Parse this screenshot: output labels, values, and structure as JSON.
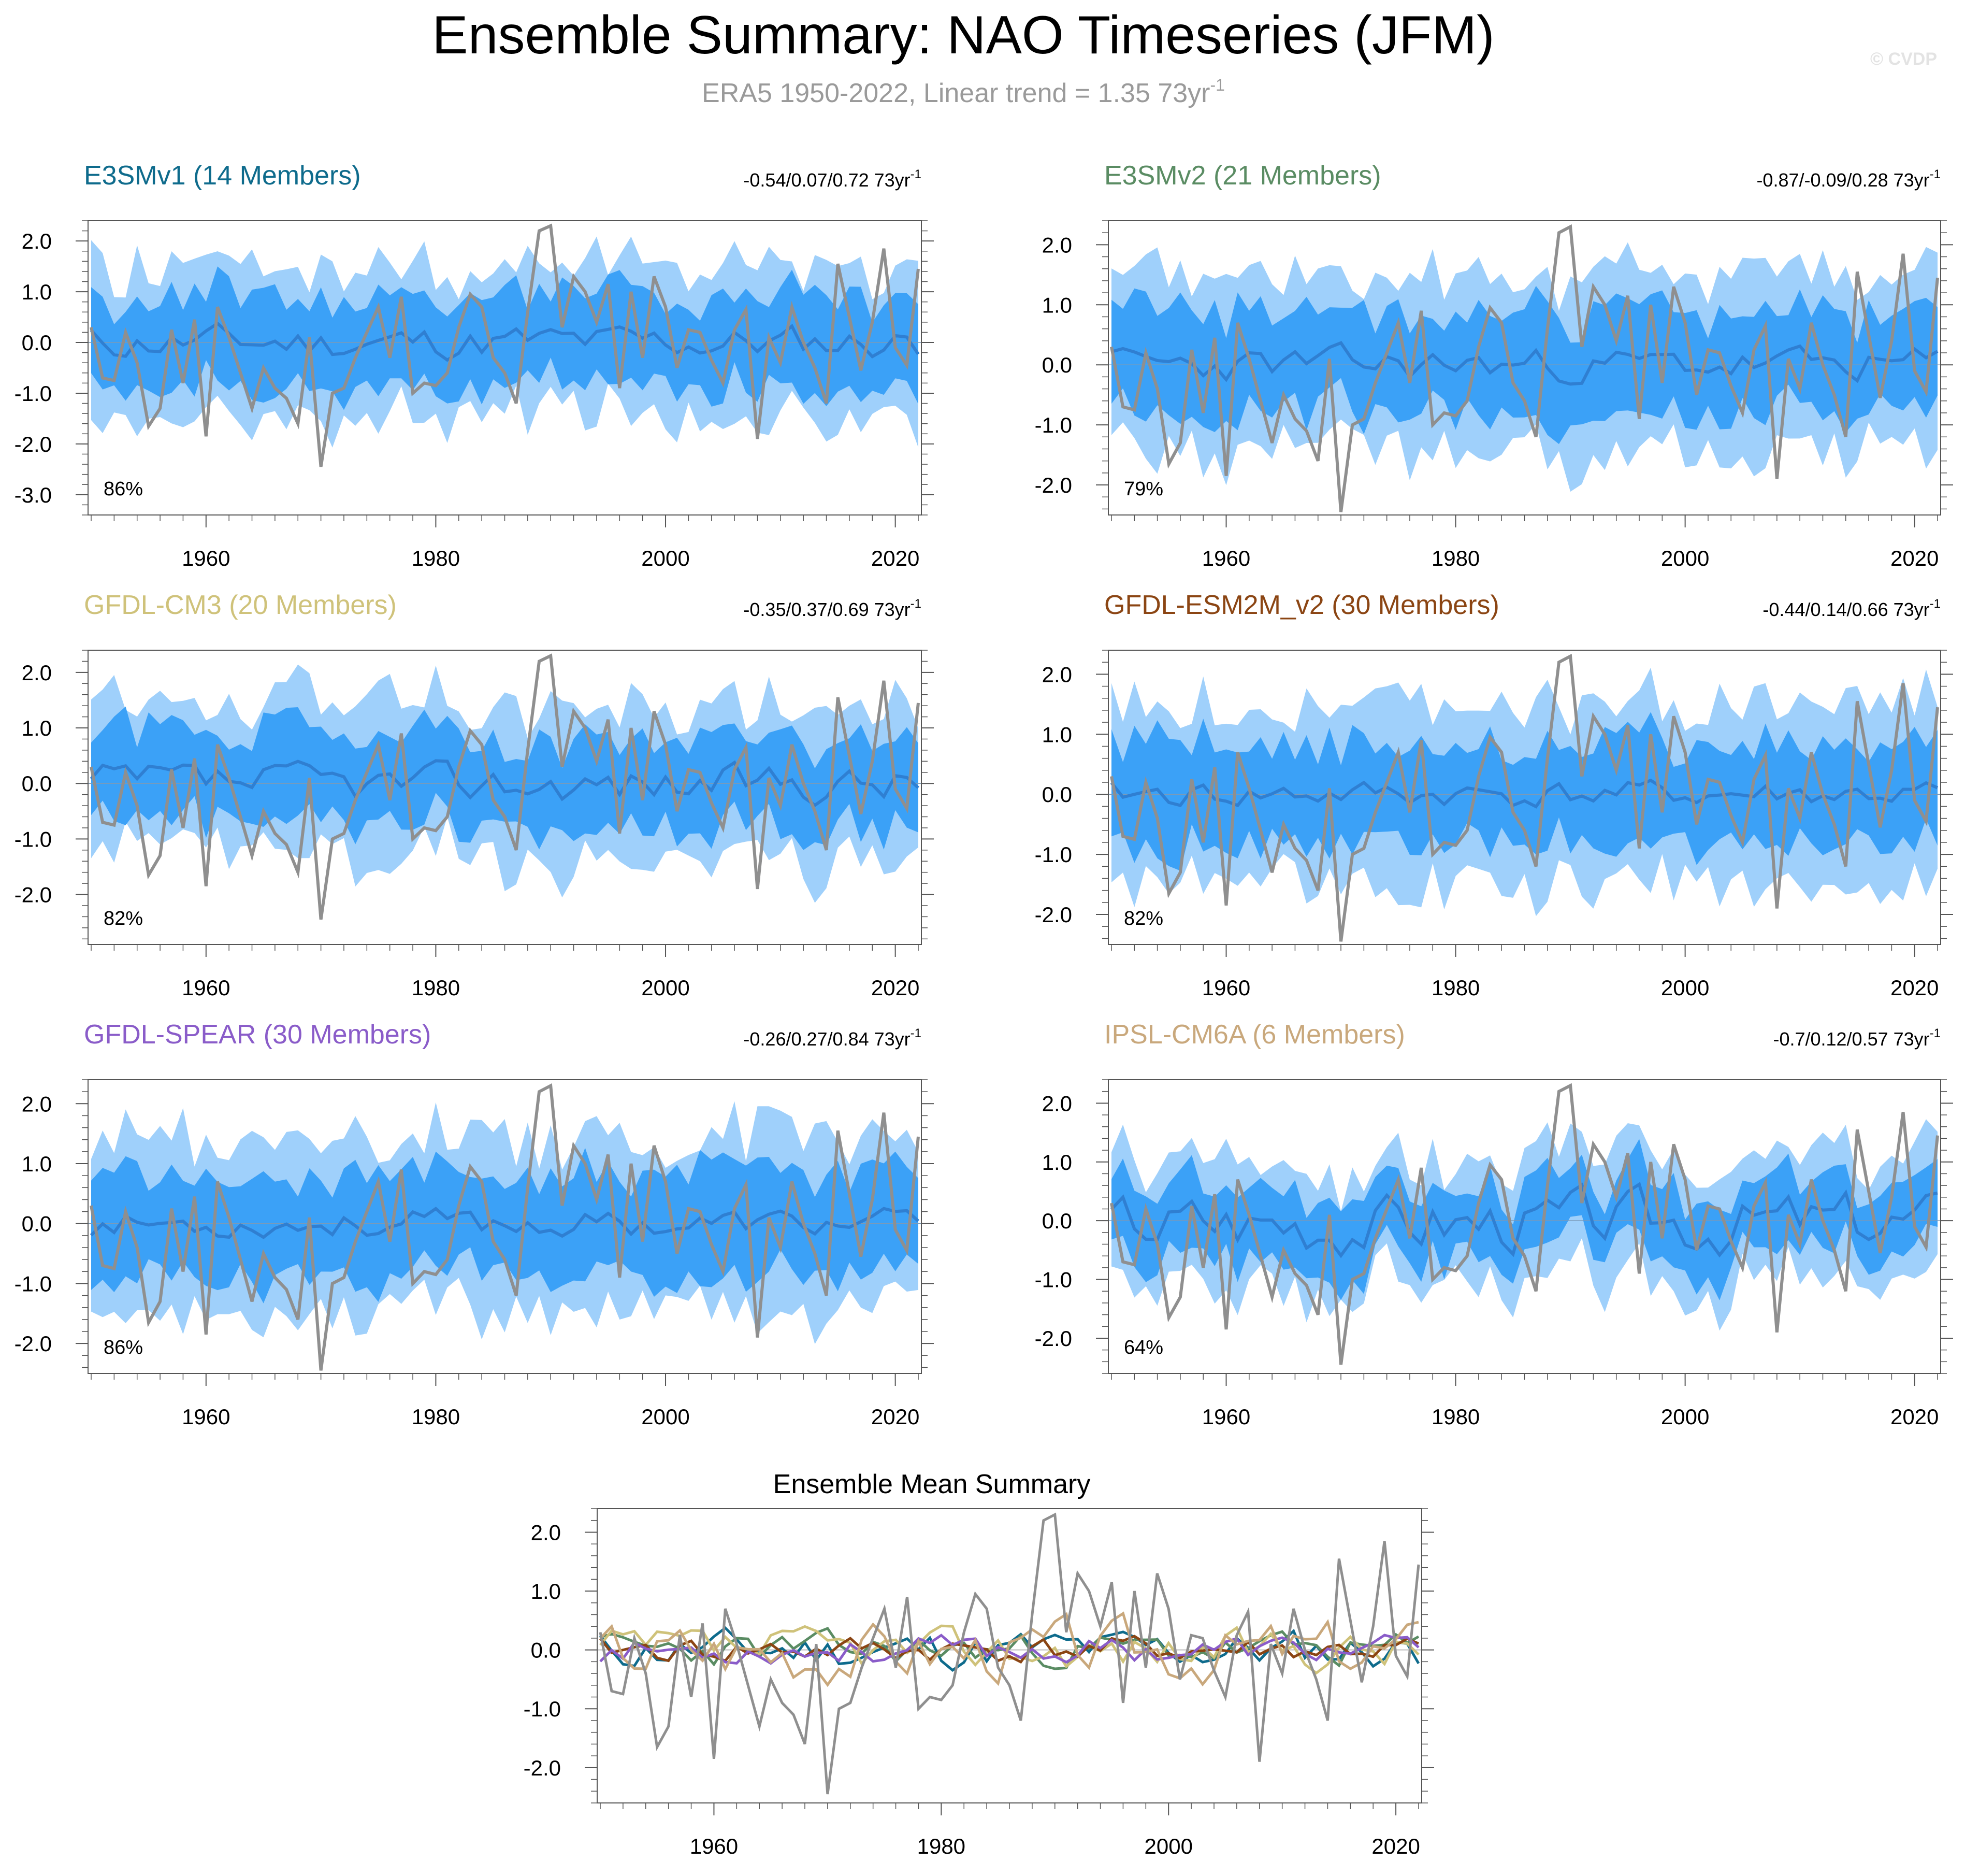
{
  "header": {
    "title": "Ensemble Summary: NAO Timeseries (JFM)",
    "subtitle_prefix": "ERA5 1950-2022, Linear trend = 1.35 73yr",
    "subtitle_sup": "-1",
    "watermark": "© CVDP"
  },
  "colors": {
    "obs": "#8f8f8f",
    "band_outer": "#9fd0fb",
    "band_inner": "#3ba1f7",
    "mean": "#2f7fd2",
    "e3smv1": "#0e6b8c",
    "e3smv2": "#5a8c63",
    "gfdl_cm3": "#cfc27a",
    "gfdl_esm2m": "#8b4513",
    "gfdl_spear": "#8a5cc9",
    "ipsl": "#c9a87c"
  },
  "chart_data": [
    {
      "type": "area",
      "title": "E3SMv1 (14 Members)",
      "title_color_key": "e3smv1",
      "trend": "-0.54/0.07/0.72 73yr",
      "trend_sup": "-1",
      "percent": "86%",
      "ylim": [
        -3.4,
        2.4
      ],
      "yticks": [
        "2.0",
        "1.0",
        "0.0",
        "-1.0",
        "-2.0",
        "-3.0"
      ],
      "ytick_values": [
        2,
        1,
        0,
        -1,
        -2,
        -3
      ],
      "xticks": [
        "1960",
        "1980",
        "2000",
        "2020"
      ],
      "xtick_values": [
        1960,
        1980,
        2000,
        2020
      ],
      "x_range": [
        1950,
        2022
      ],
      "spread": 1.0,
      "seed": 11,
      "mean_amp": 0.3
    },
    {
      "type": "area",
      "title": "E3SMv2 (21 Members)",
      "title_color_key": "e3smv2",
      "trend": "-0.87/-0.09/0.28 73yr",
      "trend_sup": "-1",
      "percent": "79%",
      "ylim": [
        -2.5,
        2.4
      ],
      "yticks": [
        "2.0",
        "1.0",
        "0.0",
        "-1.0",
        "-2.0"
      ],
      "ytick_values": [
        2,
        1,
        0,
        -1,
        -2
      ],
      "xticks": [
        "1960",
        "1980",
        "2000",
        "2020"
      ],
      "xtick_values": [
        1960,
        1980,
        2000,
        2020
      ],
      "x_range": [
        1950,
        2022
      ],
      "spread": 1.0,
      "seed": 23,
      "mean_amp": 0.25
    },
    {
      "type": "area",
      "title": "GFDL-CM3 (20 Members)",
      "title_color_key": "gfdl_cm3",
      "trend": "-0.35/0.37/0.69 73yr",
      "trend_sup": "-1",
      "percent": "82%",
      "ylim": [
        -2.9,
        2.4
      ],
      "yticks": [
        "2.0",
        "1.0",
        "0.0",
        "-1.0",
        "-2.0"
      ],
      "ytick_values": [
        2,
        1,
        0,
        -1,
        -2
      ],
      "xticks": [
        "1960",
        "1980",
        "2000",
        "2020"
      ],
      "xtick_values": [
        1960,
        1980,
        2000,
        2020
      ],
      "x_range": [
        1950,
        2022
      ],
      "spread": 0.95,
      "seed": 37,
      "mean_amp": 0.3
    },
    {
      "type": "area",
      "title": "GFDL-ESM2M_v2 (30 Members)",
      "title_color_key": "gfdl_esm2m",
      "trend": "-0.44/0.14/0.66 73yr",
      "trend_sup": "-1",
      "percent": "82%",
      "ylim": [
        -2.5,
        2.4
      ],
      "yticks": [
        "2.0",
        "1.0",
        "0.0",
        "-1.0",
        "-2.0"
      ],
      "ytick_values": [
        2,
        1,
        0,
        -1,
        -2
      ],
      "xticks": [
        "1960",
        "1980",
        "2000",
        "2020"
      ],
      "xtick_values": [
        1960,
        1980,
        2000,
        2020
      ],
      "x_range": [
        1950,
        2022
      ],
      "spread": 1.0,
      "seed": 41,
      "mean_amp": 0.2
    },
    {
      "type": "area",
      "title": "GFDL-SPEAR (30 Members)",
      "title_color_key": "gfdl_spear",
      "trend": "-0.26/0.27/0.84 73yr",
      "trend_sup": "-1",
      "percent": "86%",
      "ylim": [
        -2.5,
        2.4
      ],
      "yticks": [
        "2.0",
        "1.0",
        "0.0",
        "-1.0",
        "-2.0"
      ],
      "ytick_values": [
        2,
        1,
        0,
        -1,
        -2
      ],
      "xticks": [
        "1960",
        "1980",
        "2000",
        "2020"
      ],
      "xtick_values": [
        1960,
        1980,
        2000,
        2020
      ],
      "x_range": [
        1950,
        2022
      ],
      "spread": 1.0,
      "seed": 53,
      "mean_amp": 0.2
    },
    {
      "type": "area",
      "title": "IPSL-CM6A (6 Members)",
      "title_color_key": "ipsl",
      "trend": "-0.7/0.12/0.57 73yr",
      "trend_sup": "-1",
      "percent": "64%",
      "ylim": [
        -2.6,
        2.4
      ],
      "yticks": [
        "2.0",
        "1.0",
        "0.0",
        "-1.0",
        "-2.0"
      ],
      "ytick_values": [
        2,
        1,
        0,
        -1,
        -2
      ],
      "xticks": [
        "1960",
        "1980",
        "2000",
        "2020"
      ],
      "xtick_values": [
        1960,
        1980,
        2000,
        2020
      ],
      "x_range": [
        1950,
        2022
      ],
      "spread": 0.7,
      "seed": 67,
      "mean_amp": 0.45
    },
    {
      "type": "line",
      "title": "Ensemble Mean Summary",
      "ylim": [
        -2.6,
        2.4
      ],
      "yticks": [
        "2.0",
        "1.0",
        "0.0",
        "-1.0",
        "-2.0"
      ],
      "ytick_values": [
        2,
        1,
        0,
        -1,
        -2
      ],
      "xticks": [
        "1960",
        "1980",
        "2000",
        "2020"
      ],
      "xtick_values": [
        1960,
        1980,
        2000,
        2020
      ],
      "x_range": [
        1950,
        2022
      ],
      "series_color_keys": [
        "e3smv1",
        "e3smv2",
        "gfdl_cm3",
        "gfdl_esm2m",
        "gfdl_spear",
        "ipsl"
      ],
      "series_seeds": [
        11,
        23,
        37,
        41,
        53,
        67
      ],
      "series_amps": [
        0.3,
        0.25,
        0.3,
        0.2,
        0.2,
        0.45
      ]
    }
  ],
  "obs_series": {
    "name": "ERA5",
    "x_start": 1950,
    "values": [
      0.3,
      -0.7,
      -0.75,
      0.2,
      -0.4,
      -1.65,
      -1.3,
      0.25,
      -0.8,
      0.45,
      -1.85,
      0.7,
      0.1,
      -0.6,
      -1.3,
      -0.5,
      -0.9,
      -1.1,
      -1.6,
      0.1,
      -2.45,
      -1.0,
      -0.9,
      -0.3,
      0.2,
      0.7,
      -0.3,
      0.9,
      -1.0,
      -0.8,
      -0.85,
      -0.6,
      0.3,
      0.95,
      0.7,
      -0.3,
      -0.6,
      -1.2,
      0.6,
      2.2,
      2.3,
      0.3,
      1.3,
      1.0,
      0.4,
      1.15,
      -0.9,
      1.0,
      -0.3,
      1.3,
      0.7,
      -0.5,
      0.25,
      0.2,
      -0.35,
      -0.8,
      0.25,
      0.65,
      -1.9,
      0.1,
      -0.4,
      0.7,
      0.0,
      -0.5,
      -1.2,
      1.55,
      0.5,
      -0.55,
      0.4,
      1.85,
      -0.1,
      -0.45,
      1.45
    ]
  }
}
